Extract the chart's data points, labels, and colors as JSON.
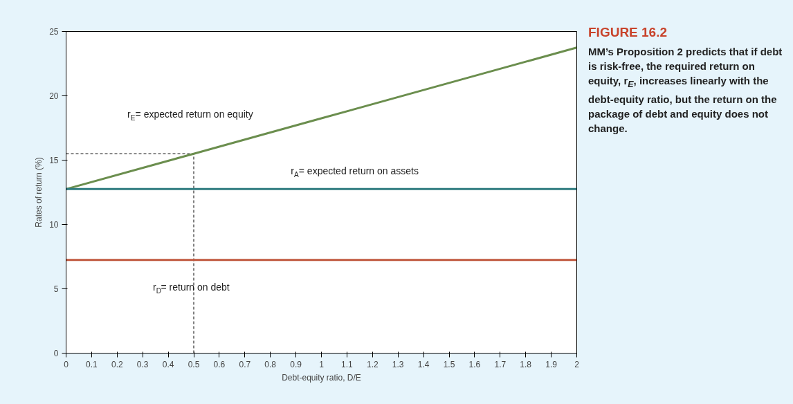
{
  "chart_data": {
    "type": "line",
    "title": "FIGURE 16.2",
    "xlabel": "Debt-equity ratio, D/E",
    "ylabel": "Rates of return (%)",
    "xlim": [
      0,
      2
    ],
    "ylim": [
      0,
      25
    ],
    "xticks": [
      0,
      0.1,
      0.2,
      0.3,
      0.4,
      0.5,
      0.6,
      0.7,
      0.8,
      0.9,
      1,
      1.1,
      1.2,
      1.3,
      1.4,
      1.5,
      1.6,
      1.7,
      1.8,
      1.9,
      2
    ],
    "yticks": [
      0,
      5,
      10,
      15,
      20,
      25
    ],
    "x": [
      0,
      0.5,
      1,
      1.5,
      2
    ],
    "series": [
      {
        "name": "r$_{E}$= expected return on equity",
        "color": "#6b8e4e",
        "values": [
          12.75,
          15.5,
          18.25,
          21,
          23.75
        ]
      },
      {
        "name": "r$_{A}$= expected return on assets",
        "color": "#2e7b7f",
        "values": [
          12.75,
          12.75,
          12.75,
          12.75,
          12.75
        ]
      },
      {
        "name": "r$_{D}$= return on debt",
        "color": "#c0583f",
        "values": [
          7.25,
          7.25,
          7.25,
          7.25,
          7.25
        ]
      }
    ],
    "ref_lines": [
      {
        "axis": "x",
        "value": 0.5,
        "line_style": "dashed"
      },
      {
        "axis": "y",
        "value": 15.5,
        "line_style": "dashed"
      }
    ],
    "annotations": [
      "MM’s Proposition 2 predicts that if debt is risk-free, the required return on equity, r$_{E}$, increases linearly with the debt-equity ratio, but the return on the package of debt and equity does not change."
    ],
    "grid": false,
    "line_style": "solid",
    "marker": "none"
  }
}
